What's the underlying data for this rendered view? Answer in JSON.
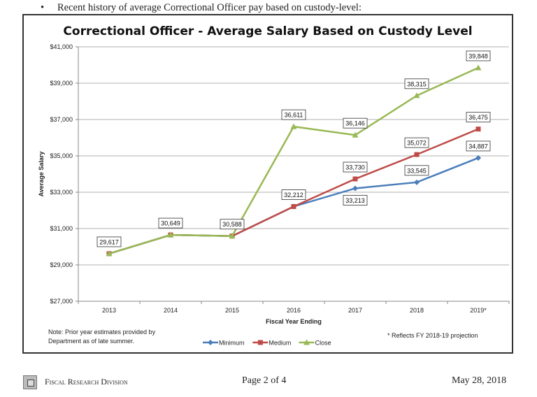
{
  "intro_text": "Recent history of average Correctional Officer pay based on custody-level:",
  "chart_data": {
    "type": "line",
    "title": "Correctional Officer - Average Salary Based on Custody Level",
    "xlabel": "Fiscal Year Ending",
    "ylabel": "Average Salary",
    "categories": [
      "2013",
      "2014",
      "2015",
      "2016",
      "2017",
      "2018",
      "2019*"
    ],
    "ylim": [
      27000,
      41000
    ],
    "yticks": [
      "$27,000",
      "$29,000",
      "$31,000",
      "$33,000",
      "$35,000",
      "$37,000",
      "$39,000",
      "$41,000"
    ],
    "grid": "horizontal",
    "legend_position": "bottom",
    "series": [
      {
        "name": "Minimum",
        "color": "#4a7ebb",
        "marker": "diamond",
        "values": [
          29617,
          30649,
          30588,
          32212,
          33213,
          33545,
          34887
        ]
      },
      {
        "name": "Medium",
        "color": "#be4b48",
        "marker": "square",
        "values": [
          29617,
          30649,
          30588,
          32212,
          33730,
          35072,
          36475
        ]
      },
      {
        "name": "Close",
        "color": "#98b954",
        "marker": "triangle",
        "values": [
          29617,
          30649,
          30588,
          36611,
          36146,
          38315,
          39848
        ]
      }
    ],
    "data_labels": [
      {
        "text": "29,617",
        "category": "2013",
        "value": 29617,
        "pos": "above"
      },
      {
        "text": "30,649",
        "category": "2014",
        "value": 30649,
        "pos": "above"
      },
      {
        "text": "30,588",
        "category": "2015",
        "value": 30588,
        "pos": "above"
      },
      {
        "text": "32,212",
        "category": "2016",
        "value": 32212,
        "pos": "above"
      },
      {
        "text": "36,611",
        "category": "2016",
        "value": 36611,
        "pos": "above"
      },
      {
        "text": "33,213",
        "category": "2017",
        "value": 33213,
        "pos": "below"
      },
      {
        "text": "33,730",
        "category": "2017",
        "value": 33730,
        "pos": "above"
      },
      {
        "text": "36,146",
        "category": "2017",
        "value": 36146,
        "pos": "above"
      },
      {
        "text": "33,545",
        "category": "2018",
        "value": 33545,
        "pos": "above"
      },
      {
        "text": "35,072",
        "category": "2018",
        "value": 35072,
        "pos": "above"
      },
      {
        "text": "38,315",
        "category": "2018",
        "value": 38315,
        "pos": "above"
      },
      {
        "text": "34,887",
        "category": "2019*",
        "value": 34887,
        "pos": "above"
      },
      {
        "text": "36,475",
        "category": "2019*",
        "value": 36475,
        "pos": "above"
      },
      {
        "text": "39,848",
        "category": "2019*",
        "value": 39848,
        "pos": "above"
      }
    ],
    "note": [
      "Note: Prior year estimates provided by",
      "Department as of late summer."
    ],
    "footnote": "* Reflects FY 2018-19 projection"
  },
  "footer": {
    "division": "Fiscal Research Division",
    "page": "Page 2 of 4",
    "date": "May 28, 2018"
  }
}
